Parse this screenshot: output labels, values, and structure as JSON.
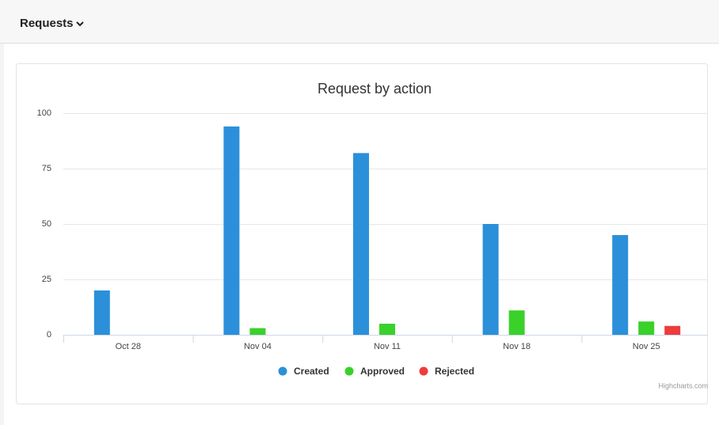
{
  "header": {
    "title": "Requests"
  },
  "chart_data": {
    "type": "bar",
    "title": "Request by action",
    "categories": [
      "Oct 28",
      "Nov 04",
      "Nov 11",
      "Nov 18",
      "Nov 25"
    ],
    "series": [
      {
        "name": "Created",
        "color": "#2b90d9",
        "values": [
          20,
          94,
          82,
          50,
          45
        ]
      },
      {
        "name": "Approved",
        "color": "#3ad12a",
        "values": [
          0,
          3,
          5,
          11,
          6
        ]
      },
      {
        "name": "Rejected",
        "color": "#ee3c3c",
        "values": [
          0,
          0,
          0,
          0,
          4
        ]
      }
    ],
    "ylim": [
      0,
      100
    ],
    "yticks": [
      0,
      25,
      50,
      75,
      100
    ],
    "grid": true,
    "legend": "bottom",
    "credits": "Highcharts.com"
  }
}
